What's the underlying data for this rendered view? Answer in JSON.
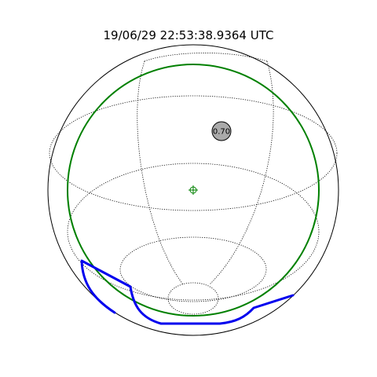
{
  "title": "19/06/29 22:53:38.9364 UTC",
  "target": {
    "label": "0.70",
    "fill_color": "#aaaaaa"
  },
  "colors": {
    "fov_circle": "#008000",
    "boresight": "#008000",
    "track": "#0000ee",
    "grid": "#000000"
  },
  "icons": {
    "boresight": "crosshair-icon"
  }
}
